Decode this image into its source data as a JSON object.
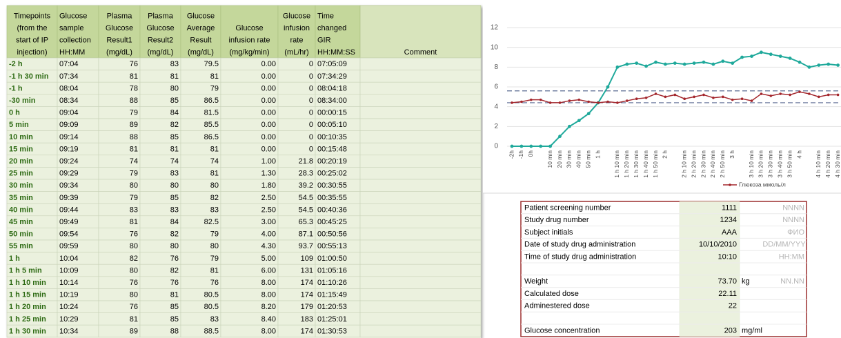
{
  "table": {
    "header": [
      [
        "Timepoints",
        "(from the",
        "start of IP",
        "injection)"
      ],
      [
        "Glucose",
        "sample",
        "collection",
        "HH:MM"
      ],
      [
        "Plasma",
        "Glucose",
        "Result1",
        "(mg/dL)"
      ],
      [
        "Plasma",
        "Glucose",
        "Result2",
        "(mg/dL)"
      ],
      [
        "Glucose",
        "Average",
        "Result",
        "(mg/dL)"
      ],
      [
        "Glucose",
        "infusion rate",
        "(mg/kg/min)"
      ],
      [
        "Glucose",
        "infusion",
        "rate",
        "(mL/hr)"
      ],
      [
        "Time",
        "changed",
        "GIR",
        "HH:MM:SS"
      ],
      [
        "Comment"
      ]
    ],
    "rows": [
      [
        "-2 h",
        "07:04",
        "76",
        "83",
        "79.5",
        "0.00",
        "0",
        "07:05:09"
      ],
      [
        "-1 h 30 min",
        "07:34",
        "81",
        "81",
        "81",
        "0.00",
        "0",
        "07:34:29"
      ],
      [
        "-1 h",
        "08:04",
        "78",
        "80",
        "79",
        "0.00",
        "0",
        "08:04:18"
      ],
      [
        "-30 min",
        "08:34",
        "88",
        "85",
        "86.5",
        "0.00",
        "0",
        "08:34:00"
      ],
      [
        "0 h",
        "09:04",
        "79",
        "84",
        "81.5",
        "0.00",
        "0",
        "00:00:15"
      ],
      [
        "5 min",
        "09:09",
        "89",
        "82",
        "85.5",
        "0.00",
        "0",
        "00:05:10"
      ],
      [
        "10 min",
        "09:14",
        "88",
        "85",
        "86.5",
        "0.00",
        "0",
        "00:10:35"
      ],
      [
        "15 min",
        "09:19",
        "81",
        "81",
        "81",
        "0.00",
        "0",
        "00:15:48"
      ],
      [
        "20 min",
        "09:24",
        "74",
        "74",
        "74",
        "1.00",
        "21.8",
        "00:20:19"
      ],
      [
        "25 min",
        "09:29",
        "79",
        "83",
        "81",
        "1.30",
        "28.3",
        "00:25:02"
      ],
      [
        "30 min",
        "09:34",
        "80",
        "80",
        "80",
        "1.80",
        "39.2",
        "00:30:55"
      ],
      [
        "35 min",
        "09:39",
        "79",
        "85",
        "82",
        "2.50",
        "54.5",
        "00:35:55"
      ],
      [
        "40 min",
        "09:44",
        "83",
        "83",
        "83",
        "2.50",
        "54.5",
        "00:40:36"
      ],
      [
        "45 min",
        "09:49",
        "81",
        "84",
        "82.5",
        "3.00",
        "65.3",
        "00:45:25"
      ],
      [
        "50 min",
        "09:54",
        "76",
        "82",
        "79",
        "4.00",
        "87.1",
        "00:50:56"
      ],
      [
        "55 min",
        "09:59",
        "80",
        "80",
        "80",
        "4.30",
        "93.7",
        "00:55:13"
      ],
      [
        "1 h",
        "10:04",
        "82",
        "76",
        "79",
        "5.00",
        "109",
        "01:00:50"
      ],
      [
        "1 h 5 min",
        "10:09",
        "80",
        "82",
        "81",
        "6.00",
        "131",
        "01:05:16"
      ],
      [
        "1 h 10 min",
        "10:14",
        "76",
        "76",
        "76",
        "8.00",
        "174",
        "01:10:26"
      ],
      [
        "1 h 15 min",
        "10:19",
        "80",
        "81",
        "80.5",
        "8.00",
        "174",
        "01:15:49"
      ],
      [
        "1 h 20 min",
        "10:24",
        "76",
        "85",
        "80.5",
        "8.20",
        "179",
        "01:20:53"
      ],
      [
        "1 h 25 min",
        "10:29",
        "81",
        "85",
        "83",
        "8.40",
        "183",
        "01:25:01"
      ],
      [
        "1 h 30 min",
        "10:34",
        "89",
        "88",
        "88.5",
        "8.00",
        "174",
        "01:30:53"
      ]
    ]
  },
  "chart_data": {
    "type": "line",
    "categories": [
      "-2h",
      "-1h",
      "0h",
      null,
      "10 min",
      "20 min",
      "30 min",
      "40 min",
      "50 min",
      "1 h",
      null,
      "1 h 10 min",
      "1 h 20 min",
      "1 h 30 min",
      "1 h 40 min",
      "1 h 50 min",
      "2 h",
      null,
      "2 h 10 min",
      "2 h 20 min",
      "2 h 30 min",
      "2 h 40 min",
      "2 h 50 min",
      "3 h",
      null,
      "3 h 10 min",
      "3 h 20 min",
      "3 h 30 min",
      "3 h 40 min",
      "3 h 50 min",
      "4 h",
      null,
      "4 h 10 min",
      "4 h 20 min",
      "4 h 30 min"
    ],
    "series": [
      {
        "color": "#1fa99b",
        "values": [
          0,
          0,
          0,
          0,
          0,
          1.0,
          2.0,
          2.6,
          3.3,
          4.4,
          6.0,
          8.0,
          8.3,
          8.4,
          8.1,
          8.5,
          8.3,
          8.4,
          8.3,
          8.4,
          8.5,
          8.3,
          8.6,
          8.4,
          9.0,
          9.1,
          9.5,
          9.3,
          9.1,
          8.9,
          8.5,
          8.0,
          8.2,
          8.3,
          8.2
        ]
      },
      {
        "name": "Глюкоза ммоль/л",
        "color": "#a3262c",
        "values": [
          4.4,
          4.5,
          4.7,
          4.7,
          4.4,
          4.4,
          4.6,
          4.7,
          4.5,
          4.4,
          4.5,
          4.4,
          4.6,
          4.8,
          4.9,
          5.3,
          5.0,
          5.2,
          4.8,
          5.0,
          5.2,
          4.9,
          5.0,
          4.7,
          4.8,
          4.6,
          5.3,
          5.1,
          5.3,
          5.2,
          5.5,
          5.3,
          5.0,
          5.2,
          5.2
        ]
      }
    ],
    "reference_lines": [
      5.6,
      4.4
    ],
    "reference_color": "#56658f",
    "ylim": [
      0,
      12
    ],
    "yticks": [
      0,
      2,
      4,
      6,
      8,
      10,
      12
    ],
    "grid": true,
    "legend": "bottom"
  },
  "form": {
    "rows": [
      {
        "label": "Patient screening number",
        "value": "1111",
        "hint": "NNNN"
      },
      {
        "label": "Study drug number",
        "value": "1234",
        "hint": "NNNN"
      },
      {
        "label": "Subject initials",
        "value": "AAA",
        "hint": "ФИО"
      },
      {
        "label": "Date of study drug administration",
        "value": "10/10/2010",
        "hint": "DD/MM/YYYY"
      },
      {
        "label": "Time of study drug administration",
        "value": "10:10",
        "hint": "HH:MM"
      },
      {
        "label": "Weight",
        "value": "73.70",
        "unit": "kg",
        "hint": "NN.NN"
      },
      {
        "label": "Calculated dose",
        "value": "22.11"
      },
      {
        "label": "Adminestered dose",
        "value": "22"
      },
      {
        "label": "Glucose concentration",
        "value": "203",
        "unit": "mg/ml"
      }
    ]
  }
}
